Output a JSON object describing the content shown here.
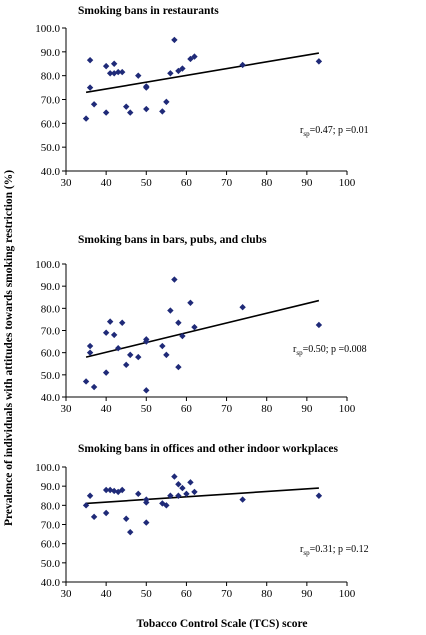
{
  "figure": {
    "ylabel": "Prevalence of individuals with attitudes towards smoking restriction (%)",
    "xlabel": "Tobacco Control Scale (TCS) score"
  },
  "chart_data": [
    {
      "type": "scatter",
      "title": "Smoking bans in restaurants",
      "xlim": [
        30,
        100
      ],
      "ylim": [
        40,
        100
      ],
      "xticks": [
        "30",
        "40",
        "50",
        "60",
        "70",
        "80",
        "90",
        "100"
      ],
      "yticks": [
        "40.0",
        "50.0",
        "60.0",
        "70.0",
        "80.0",
        "90.0",
        "100.0"
      ],
      "grid": false,
      "marker_color": "#1f2a78",
      "line_color": "#000000",
      "trendline": {
        "x": [
          35,
          93
        ],
        "y": [
          73.0,
          89.5
        ]
      },
      "stat": {
        "r": "r",
        "sub": "sp",
        "text": "=0.47; p =0.01"
      },
      "x": [
        35,
        36,
        36,
        37,
        40,
        40,
        41,
        42,
        42,
        43,
        44,
        45,
        46,
        48,
        50,
        50,
        50,
        54,
        55,
        56,
        57,
        58,
        59,
        61,
        62,
        74,
        93
      ],
      "y": [
        62,
        86.5,
        75,
        68,
        84,
        64.5,
        81,
        85,
        81,
        81.5,
        81.5,
        67,
        64.5,
        80,
        75.5,
        75,
        66,
        65,
        69,
        81,
        95,
        82,
        83,
        87,
        88,
        84.5,
        86
      ]
    },
    {
      "type": "scatter",
      "title": "Smoking bans in bars, pubs, and clubs",
      "xlim": [
        30,
        100
      ],
      "ylim": [
        40,
        100
      ],
      "xticks": [
        "30",
        "40",
        "50",
        "60",
        "70",
        "80",
        "90",
        "100"
      ],
      "yticks": [
        "40.0",
        "50.0",
        "60.0",
        "70.0",
        "80.0",
        "90.0",
        "100.0"
      ],
      "grid": false,
      "marker_color": "#1f2a78",
      "line_color": "#000000",
      "trendline": {
        "x": [
          35,
          93
        ],
        "y": [
          58.0,
          83.5
        ]
      },
      "stat": {
        "r": "r",
        "sub": "sp",
        "text": "=0.50; p =0.008"
      },
      "x": [
        35,
        36,
        36,
        37,
        40,
        40,
        41,
        42,
        43,
        44,
        45,
        46,
        48,
        50,
        50,
        54,
        55,
        56,
        57,
        58,
        59,
        61,
        62,
        74,
        93,
        58,
        50
      ],
      "y": [
        47,
        63,
        60,
        44.5,
        51,
        69,
        74,
        68,
        62,
        73.5,
        54.5,
        59,
        58,
        65,
        66,
        63,
        59,
        79,
        93,
        73.5,
        67.5,
        82.5,
        71.5,
        80.5,
        72.5,
        53.5,
        43
      ]
    },
    {
      "type": "scatter",
      "title": "Smoking bans in offices and other indoor workplaces",
      "xlim": [
        30,
        100
      ],
      "ylim": [
        40,
        100
      ],
      "xticks": [
        "30",
        "40",
        "50",
        "60",
        "70",
        "80",
        "90",
        "100"
      ],
      "yticks": [
        "40.0",
        "50.0",
        "60.0",
        "70.0",
        "80.0",
        "90.0",
        "100.0"
      ],
      "grid": false,
      "marker_color": "#1f2a78",
      "line_color": "#000000",
      "trendline": {
        "x": [
          35,
          93
        ],
        "y": [
          81.0,
          89.0
        ]
      },
      "stat": {
        "r": "r",
        "sub": "sp",
        "text": "=0.31; p =0.12"
      },
      "x": [
        35,
        36,
        37,
        40,
        40,
        41,
        42,
        43,
        44,
        45,
        46,
        48,
        50,
        50,
        50,
        54,
        55,
        56,
        57,
        58,
        59,
        60,
        61,
        62,
        74,
        93,
        58
      ],
      "y": [
        80,
        85,
        74,
        88,
        76,
        88,
        87.5,
        87,
        88,
        73,
        66,
        86,
        71,
        81.5,
        83,
        81,
        80,
        85,
        95,
        91,
        89,
        86,
        92,
        87,
        83,
        85,
        85
      ]
    }
  ]
}
